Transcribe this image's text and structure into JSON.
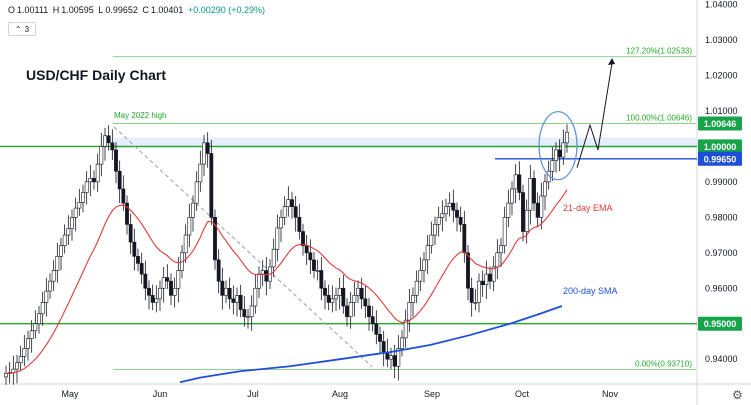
{
  "legend": {
    "open_label": "O",
    "open": "1.00111",
    "high_label": "H",
    "high": "1.00595",
    "low_label": "L",
    "low": "0.99652",
    "close_label": "C",
    "close": "1.00401",
    "change": "+0.00290 (+0.29%)",
    "collapse_count": "3"
  },
  "colors": {
    "up_candle": "#ffffff",
    "candle_outline": "#131722",
    "ema": "#e03a3a",
    "sma": "#1f4fd8",
    "support_resistance": "#24a829",
    "fib": "#8fd18f",
    "highlight_tag": "#16a34a",
    "blue_tag": "#1d4ed8",
    "circle": "#5b8fd6"
  },
  "chart_data": {
    "type": "candlestick",
    "title": "USD/CHF Daily Chart",
    "ylim": [
      0.933,
      1.041
    ],
    "y_ticks": [
      "1.04000",
      "1.03000",
      "1.02000",
      "1.01000",
      "0.99000",
      "0.98000",
      "0.97000",
      "0.96000",
      "0.94000"
    ],
    "x_ticks": [
      "May",
      "Jun",
      "Jul",
      "Aug",
      "Sep",
      "Oct",
      "Nov"
    ],
    "horizontal_levels": [
      {
        "label": "1.00646",
        "value": 1.00646
      },
      {
        "label": "1.00000",
        "value": 1.0
      },
      {
        "label": "0.99650",
        "value": 0.9965
      },
      {
        "label": "0.95000",
        "value": 0.95
      }
    ],
    "fibonacci": [
      {
        "label": "127.20%(1.02533)",
        "value": 1.02533
      },
      {
        "label": "100.00%(1.00646)",
        "value": 1.00646
      },
      {
        "label": "0.00%(0.93710)",
        "value": 0.9371
      }
    ],
    "annotations": {
      "may_high": "May 2022 high",
      "ema_label": "21-day EMA",
      "sma_label": "200-day SMA"
    },
    "closes": [
      0.936,
      0.9362,
      0.9372,
      0.939,
      0.9408,
      0.943,
      0.9458,
      0.948,
      0.95,
      0.9528,
      0.956,
      0.9592,
      0.962,
      0.965,
      0.969,
      0.972,
      0.975,
      0.9768,
      0.98,
      0.9826,
      0.9842,
      0.987,
      0.99,
      0.991,
      0.99,
      0.995,
      1.0,
      1.003,
      1.001,
      0.999,
      0.993,
      0.988,
      0.984,
      0.978,
      0.973,
      0.969,
      0.967,
      0.964,
      0.96,
      0.958,
      0.956,
      0.957,
      0.96,
      0.963,
      0.962,
      0.958,
      0.96,
      0.965,
      0.97,
      0.975,
      0.98,
      0.984,
      0.99,
      0.995,
      1.001,
      0.998,
      0.98,
      0.968,
      0.962,
      0.958,
      0.96,
      0.957,
      0.956,
      0.958,
      0.954,
      0.952,
      0.952,
      0.955,
      0.96,
      0.964,
      0.965,
      0.962,
      0.966,
      0.971,
      0.977,
      0.98,
      0.983,
      0.985,
      0.983,
      0.98,
      0.976,
      0.972,
      0.97,
      0.968,
      0.965,
      0.965,
      0.96,
      0.958,
      0.956,
      0.957,
      0.958,
      0.96,
      0.955,
      0.952,
      0.956,
      0.958,
      0.96,
      0.957,
      0.955,
      0.952,
      0.95,
      0.947,
      0.945,
      0.942,
      0.94,
      0.941,
      0.938,
      0.943,
      0.946,
      0.951,
      0.956,
      0.958,
      0.962,
      0.965,
      0.968,
      0.972,
      0.975,
      0.978,
      0.98,
      0.981,
      0.983,
      0.984,
      0.982,
      0.98,
      0.978,
      0.97,
      0.96,
      0.956,
      0.956,
      0.962,
      0.961,
      0.964,
      0.962,
      0.966,
      0.97,
      0.972,
      0.98,
      0.984,
      0.988,
      0.992,
      0.987,
      0.976,
      0.982,
      0.991,
      0.984,
      0.98,
      0.986,
      0.99,
      0.993,
      0.996,
      0.999,
      0.997,
      1.001,
      1.004
    ]
  }
}
